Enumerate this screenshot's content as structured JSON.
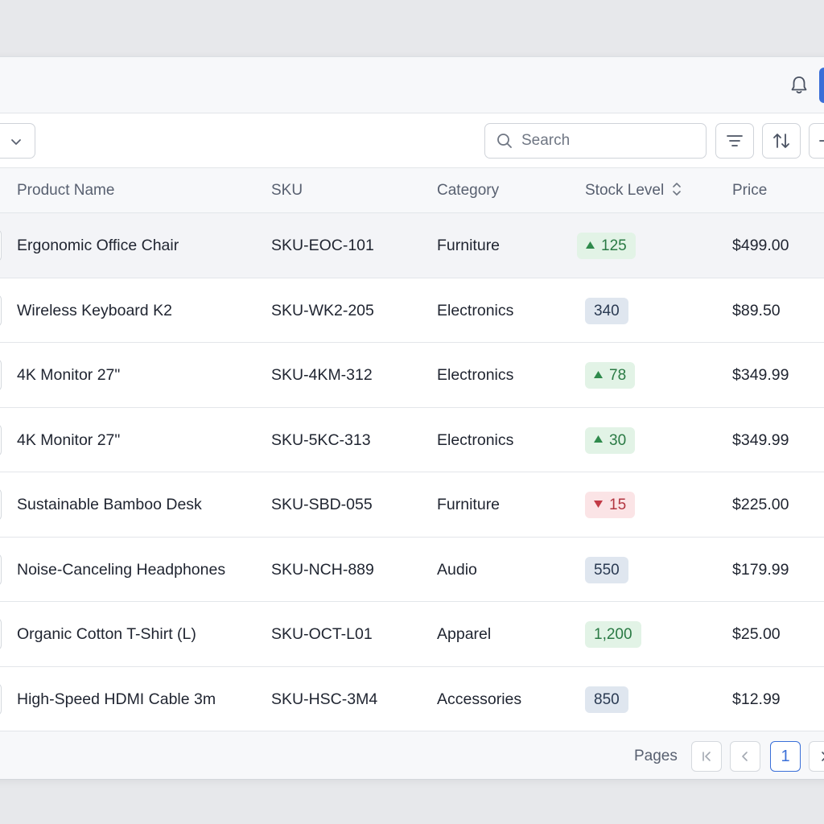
{
  "header": {
    "bell_icon": "bell-icon",
    "primary_button_color": "#3a6fd8"
  },
  "toolbar": {
    "select_icon": "chevron-down-icon",
    "search": {
      "placeholder": "Search",
      "value": "",
      "icon": "search-icon"
    },
    "buttons": [
      "filter-icon",
      "sort-arrows-icon",
      "more-icon"
    ]
  },
  "table": {
    "columns": [
      "Product Name",
      "SKU",
      "Category",
      "Stock Level",
      "Price"
    ],
    "rows": [
      {
        "name": "Ergonomic Office Chair",
        "sku": "SKU-EOC-101",
        "category": "Furniture",
        "stock": "125",
        "trend": "up",
        "price": "$499.00"
      },
      {
        "name": "Wireless Keyboard K2",
        "sku": "SKU-WK2-205",
        "category": "Electronics",
        "stock": "340",
        "trend": "neutral",
        "price": "$89.50"
      },
      {
        "name": "4K Monitor 27\"",
        "sku": "SKU-4KM-312",
        "category": "Electronics",
        "stock": "78",
        "trend": "up",
        "price": "$349.99"
      },
      {
        "name": "4K Monitor 27\"",
        "sku": "SKU-5KC-313",
        "category": "Electronics",
        "stock": "30",
        "trend": "up",
        "price": "$349.99"
      },
      {
        "name": "Sustainable Bamboo Desk",
        "sku": "SKU-SBD-055",
        "category": "Furniture",
        "stock": "15",
        "trend": "down",
        "price": "$225.00"
      },
      {
        "name": "Noise-Canceling Headphones",
        "sku": "SKU-NCH-889",
        "category": "Audio",
        "stock": "550",
        "trend": "neutral",
        "price": "$179.99"
      },
      {
        "name": "Organic Cotton T-Shirt (L)",
        "sku": "SKU-OCT-L01",
        "category": "Apparel",
        "stock": "1,200",
        "trend": "up-plain",
        "price": "$25.00"
      },
      {
        "name": "High-Speed HDMI Cable 3m",
        "sku": "SKU-HSC-3M4",
        "category": "Accessories",
        "stock": "850",
        "trend": "neutral",
        "price": "$12.99"
      }
    ]
  },
  "colors": {
    "badge_up_bg": "#e2f3e6",
    "badge_up_text": "#2a7a44",
    "badge_down_bg": "#fbe4e6",
    "badge_down_text": "#b23540",
    "badge_neutral_bg": "#dfe6ef",
    "accent": "#3a6fd8"
  },
  "pagination": {
    "label": "Pages",
    "current_page": "1",
    "first_icon": "first-page-icon",
    "prev_icon": "chevron-left-icon",
    "next_icon": "chevron-right-icon"
  }
}
